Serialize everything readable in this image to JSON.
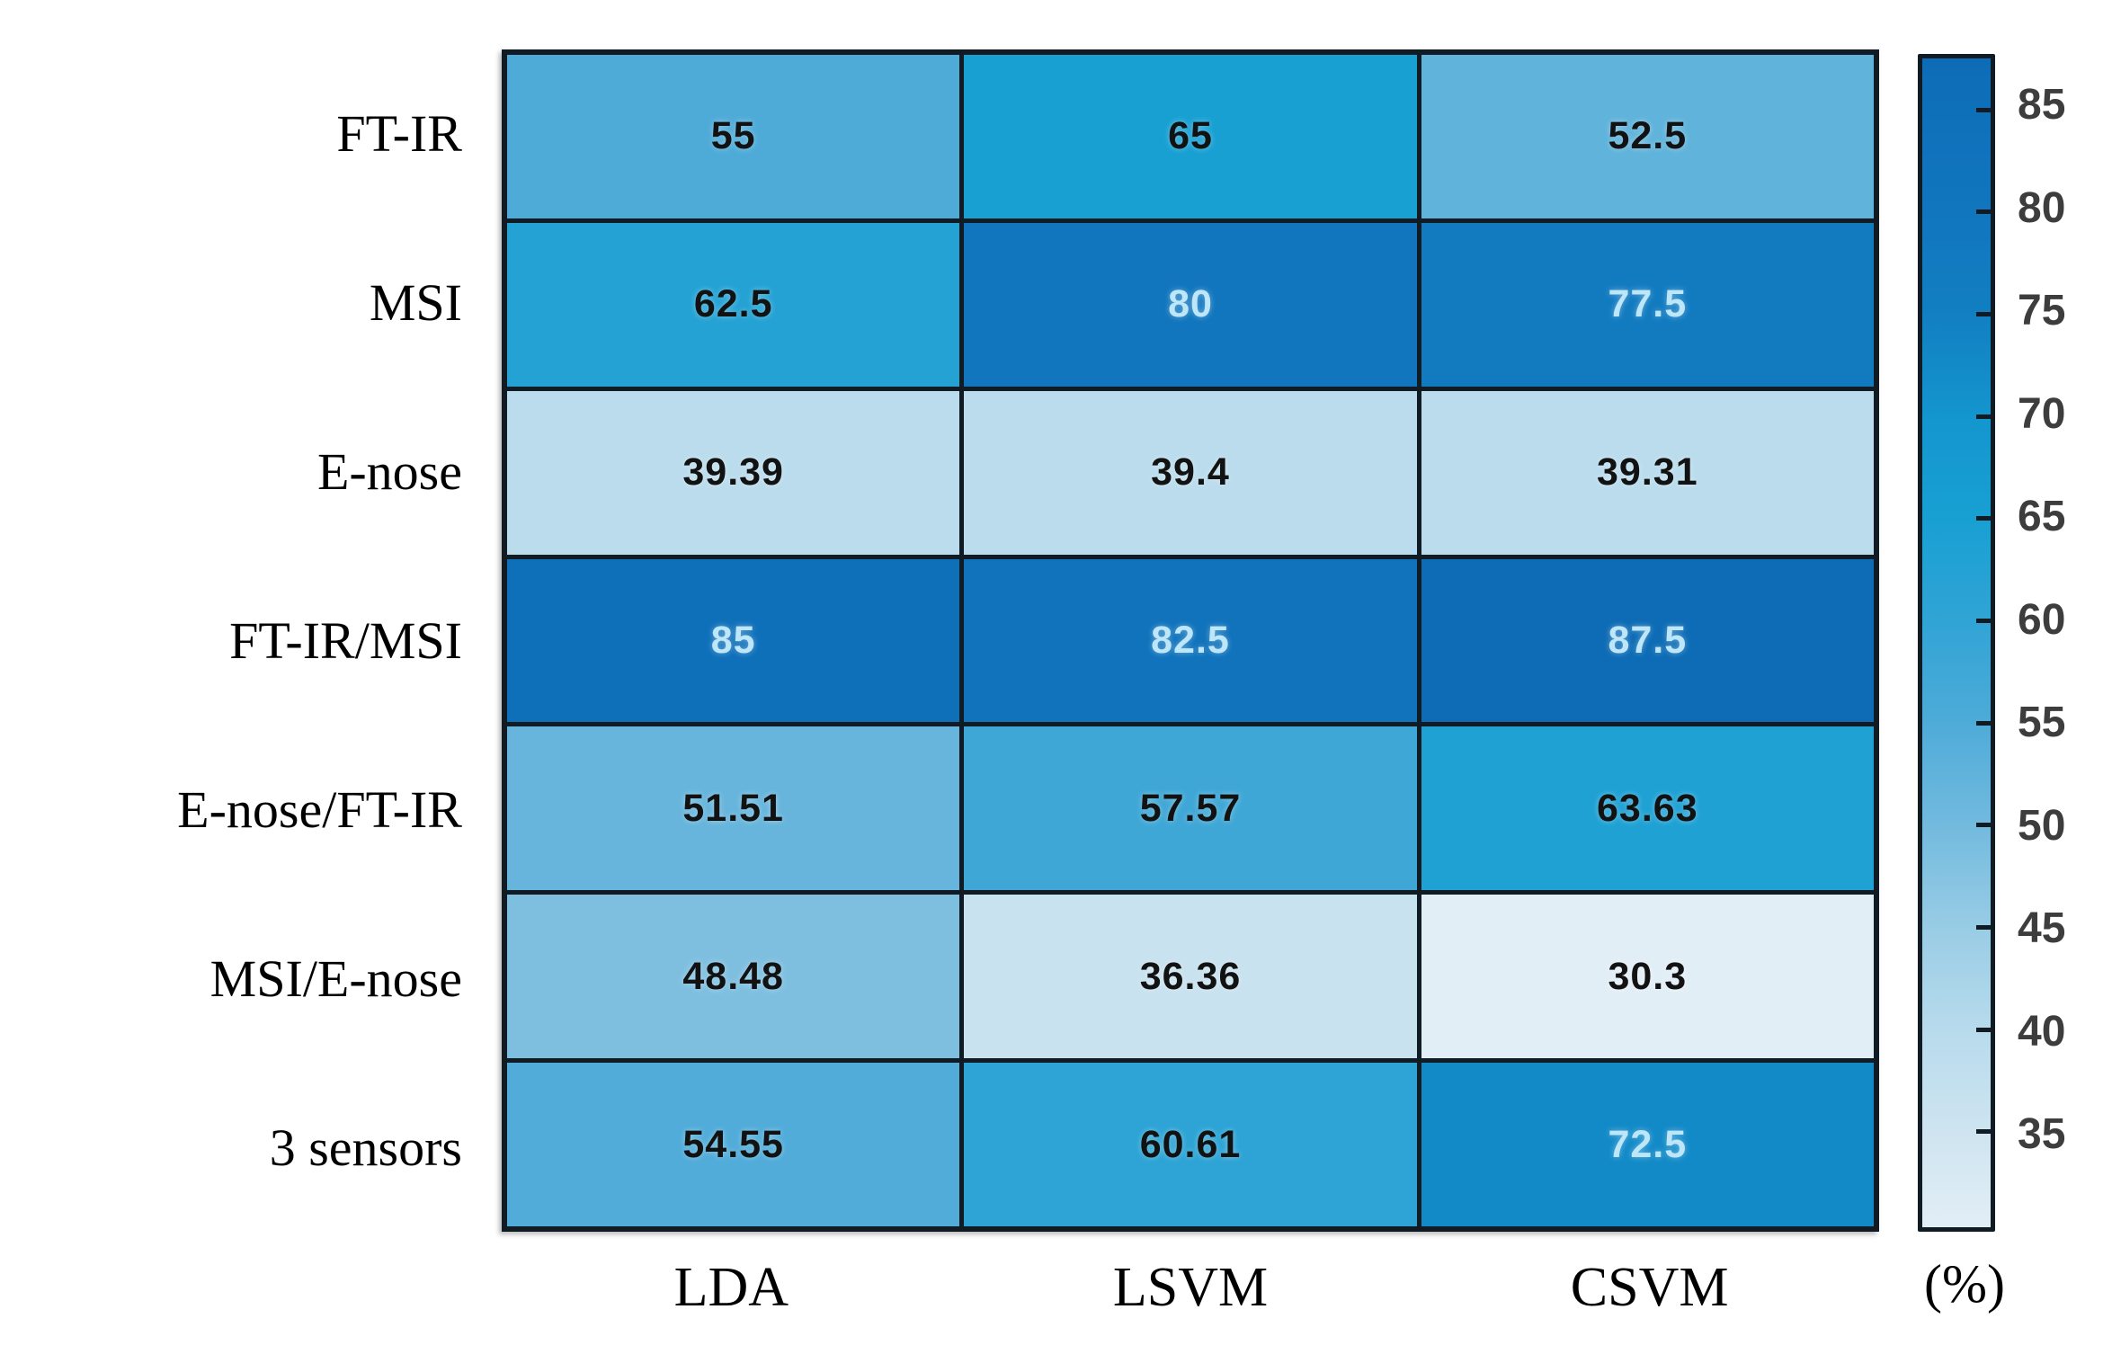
{
  "chart_data": {
    "type": "heatmap",
    "title": "",
    "rows": [
      "FT-IR",
      "MSI",
      "E-nose",
      "FT-IR/MSI",
      "E-nose/FT-IR",
      "MSI/E-nose",
      "3 sensors"
    ],
    "columns": [
      "LDA",
      "LSVM",
      "CSVM"
    ],
    "values": [
      [
        55,
        65,
        52.5
      ],
      [
        62.5,
        80,
        77.5
      ],
      [
        39.39,
        39.4,
        39.31
      ],
      [
        85,
        82.5,
        87.5
      ],
      [
        51.51,
        57.57,
        63.63
      ],
      [
        48.48,
        36.36,
        30.3
      ],
      [
        54.55,
        60.61,
        72.5
      ]
    ],
    "value_labels": [
      [
        "55",
        "65",
        "52.5"
      ],
      [
        "62.5",
        "80",
        "77.5"
      ],
      [
        "39.39",
        "39.4",
        "39.31"
      ],
      [
        "85",
        "82.5",
        "87.5"
      ],
      [
        "51.51",
        "57.57",
        "63.63"
      ],
      [
        "48.48",
        "36.36",
        "30.3"
      ],
      [
        "54.55",
        "60.61",
        "72.5"
      ]
    ],
    "colorbar": {
      "unit_label": "(%)",
      "ticks": [
        85,
        80,
        75,
        70,
        65,
        60,
        55,
        50,
        45,
        40,
        35
      ],
      "min": 30.3,
      "max": 87.5
    },
    "colormap_stops": [
      [
        30.3,
        "#E2EEF6"
      ],
      [
        35,
        "#CEE4F0"
      ],
      [
        40,
        "#B7DBEC"
      ],
      [
        45,
        "#98CCE5"
      ],
      [
        50,
        "#72BADE"
      ],
      [
        55,
        "#4EABD8"
      ],
      [
        60,
        "#30A4D5"
      ],
      [
        65,
        "#18A0D3"
      ],
      [
        70,
        "#1495CE"
      ],
      [
        75,
        "#127FC2"
      ],
      [
        80,
        "#1176BE"
      ],
      [
        85,
        "#0F70BA"
      ],
      [
        87.5,
        "#0D6CB5"
      ]
    ],
    "light_text_threshold": 70,
    "colors": {
      "grid_line": "#111b24",
      "dark_value_text": "#121212",
      "light_value_text": "#BDE6F8",
      "tick_label_text": "#3d3d3d",
      "background": "#ffffff"
    },
    "legend_position": "right"
  }
}
